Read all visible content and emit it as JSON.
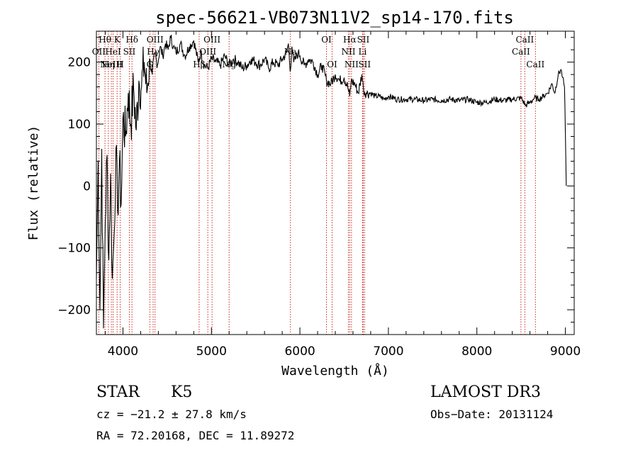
{
  "chart_data": {
    "type": "line",
    "title": "spec-56621-VB073N11V2_sp14-170.fits",
    "xlabel": "Wavelength (Å)",
    "ylabel": "Flux (relative)",
    "xlim": [
      3700,
      9100
    ],
    "ylim": [
      -240,
      250
    ],
    "xticks": [
      4000,
      5000,
      6000,
      7000,
      8000,
      9000
    ],
    "xtick_labels": [
      "4000",
      "5000",
      "6000",
      "7000",
      "8000",
      "9000"
    ],
    "yticks": [
      -200,
      -100,
      0,
      100,
      200
    ],
    "ytick_labels": [
      "−200",
      "−100",
      "0",
      "100",
      "200"
    ],
    "series": [
      {
        "name": "flux",
        "x": [
          3700,
          3720,
          3740,
          3760,
          3780,
          3800,
          3820,
          3840,
          3860,
          3880,
          3900,
          3920,
          3940,
          3960,
          3980,
          4000,
          4030,
          4060,
          4090,
          4120,
          4150,
          4180,
          4210,
          4240,
          4270,
          4300,
          4330,
          4360,
          4390,
          4420,
          4450,
          4480,
          4510,
          4540,
          4570,
          4600,
          4650,
          4700,
          4750,
          4800,
          4850,
          4880,
          4920,
          4960,
          5000,
          5050,
          5100,
          5150,
          5200,
          5250,
          5300,
          5350,
          5400,
          5450,
          5500,
          5550,
          5600,
          5650,
          5700,
          5750,
          5800,
          5850,
          5870,
          5890,
          5910,
          5930,
          5950,
          5980,
          6000,
          6050,
          6100,
          6150,
          6200,
          6250,
          6300,
          6350,
          6400,
          6450,
          6500,
          6540,
          6563,
          6580,
          6620,
          6660,
          6700,
          6720,
          6750,
          6800,
          6850,
          6900,
          6950,
          7000,
          7100,
          7200,
          7300,
          7400,
          7500,
          7600,
          7700,
          7800,
          7900,
          8000,
          8100,
          8200,
          8300,
          8400,
          8500,
          8550,
          8600,
          8650,
          8700,
          8750,
          8800,
          8850,
          8880,
          8920,
          8950,
          8970,
          8990,
          9000,
          9010
        ],
        "values": [
          -150,
          40,
          -200,
          60,
          -230,
          -60,
          50,
          -120,
          20,
          -150,
          -80,
          60,
          -40,
          40,
          -30,
          110,
          80,
          150,
          100,
          160,
          90,
          170,
          160,
          200,
          150,
          205,
          180,
          215,
          195,
          225,
          210,
          230,
          220,
          240,
          225,
          215,
          230,
          210,
          225,
          235,
          200,
          215,
          195,
          190,
          205,
          200,
          195,
          210,
          195,
          205,
          200,
          190,
          195,
          205,
          200,
          195,
          205,
          190,
          200,
          195,
          205,
          215,
          230,
          185,
          225,
          200,
          205,
          215,
          210,
          195,
          205,
          200,
          180,
          195,
          170,
          165,
          180,
          170,
          175,
          160,
          145,
          170,
          165,
          150,
          180,
          155,
          150,
          150,
          145,
          145,
          140,
          145,
          140,
          140,
          140,
          138,
          140,
          138,
          140,
          138,
          140,
          135,
          135,
          140,
          138,
          140,
          142,
          130,
          135,
          142,
          140,
          145,
          150,
          165,
          150,
          180,
          188,
          175,
          160,
          90,
          0
        ]
      }
    ],
    "lines": [
      {
        "wl": 3727,
        "label": "OII",
        "row": 2
      },
      {
        "wl": 3797,
        "label": "Hθ",
        "row": 1
      },
      {
        "wl": 3835,
        "label": "Hη",
        "row": 3
      },
      {
        "wl": 3869,
        "label": "NeIII",
        "row": 3
      },
      {
        "wl": 3889,
        "label": "HeI",
        "row": 2
      },
      {
        "wl": 3934,
        "label": "K",
        "row": 1
      },
      {
        "wl": 3969,
        "label": "H",
        "row": 3
      },
      {
        "wl": 4072,
        "label": "SII",
        "row": 2
      },
      {
        "wl": 4102,
        "label": "Hδ",
        "row": 1
      },
      {
        "wl": 4304,
        "label": "G",
        "row": 3
      },
      {
        "wl": 4341,
        "label": "Hγ",
        "row": 2
      },
      {
        "wl": 4363,
        "label": "OIII",
        "row": 1
      },
      {
        "wl": 4861,
        "label": "Hβ",
        "row": 3
      },
      {
        "wl": 4959,
        "label": "OIII",
        "row": 2
      },
      {
        "wl": 5007,
        "label": "OIII",
        "row": 1
      },
      {
        "wl": 5200,
        "label": "Mg",
        "row": 3
      },
      {
        "wl": 5893,
        "label": "Na",
        "row": 2
      },
      {
        "wl": 6300,
        "label": "OI",
        "row": 1
      },
      {
        "wl": 6364,
        "label": "OI",
        "row": 3
      },
      {
        "wl": 6548,
        "label": "NII",
        "row": 2
      },
      {
        "wl": 6563,
        "label": "Hα",
        "row": 1
      },
      {
        "wl": 6583,
        "label": "NII",
        "row": 3
      },
      {
        "wl": 6708,
        "label": "Li",
        "row": 2
      },
      {
        "wl": 6716,
        "label": "SII",
        "row": 1
      },
      {
        "wl": 6731,
        "label": "SII",
        "row": 3
      },
      {
        "wl": 8498,
        "label": "CaII",
        "row": 2
      },
      {
        "wl": 8542,
        "label": "CaII",
        "row": 1
      },
      {
        "wl": 8662,
        "label": "CaII",
        "row": 3
      }
    ],
    "line_color": "#c8281e",
    "spectrum_color": "#000000"
  },
  "info": {
    "class": "STAR",
    "subclass": "K5",
    "survey": "LAMOST DR3",
    "cz": "cz = −21.2 ± 27.8 km/s",
    "obs_date": "Obs−Date: 20131124",
    "radec": "RA =  72.20168, DEC =  11.89272"
  }
}
